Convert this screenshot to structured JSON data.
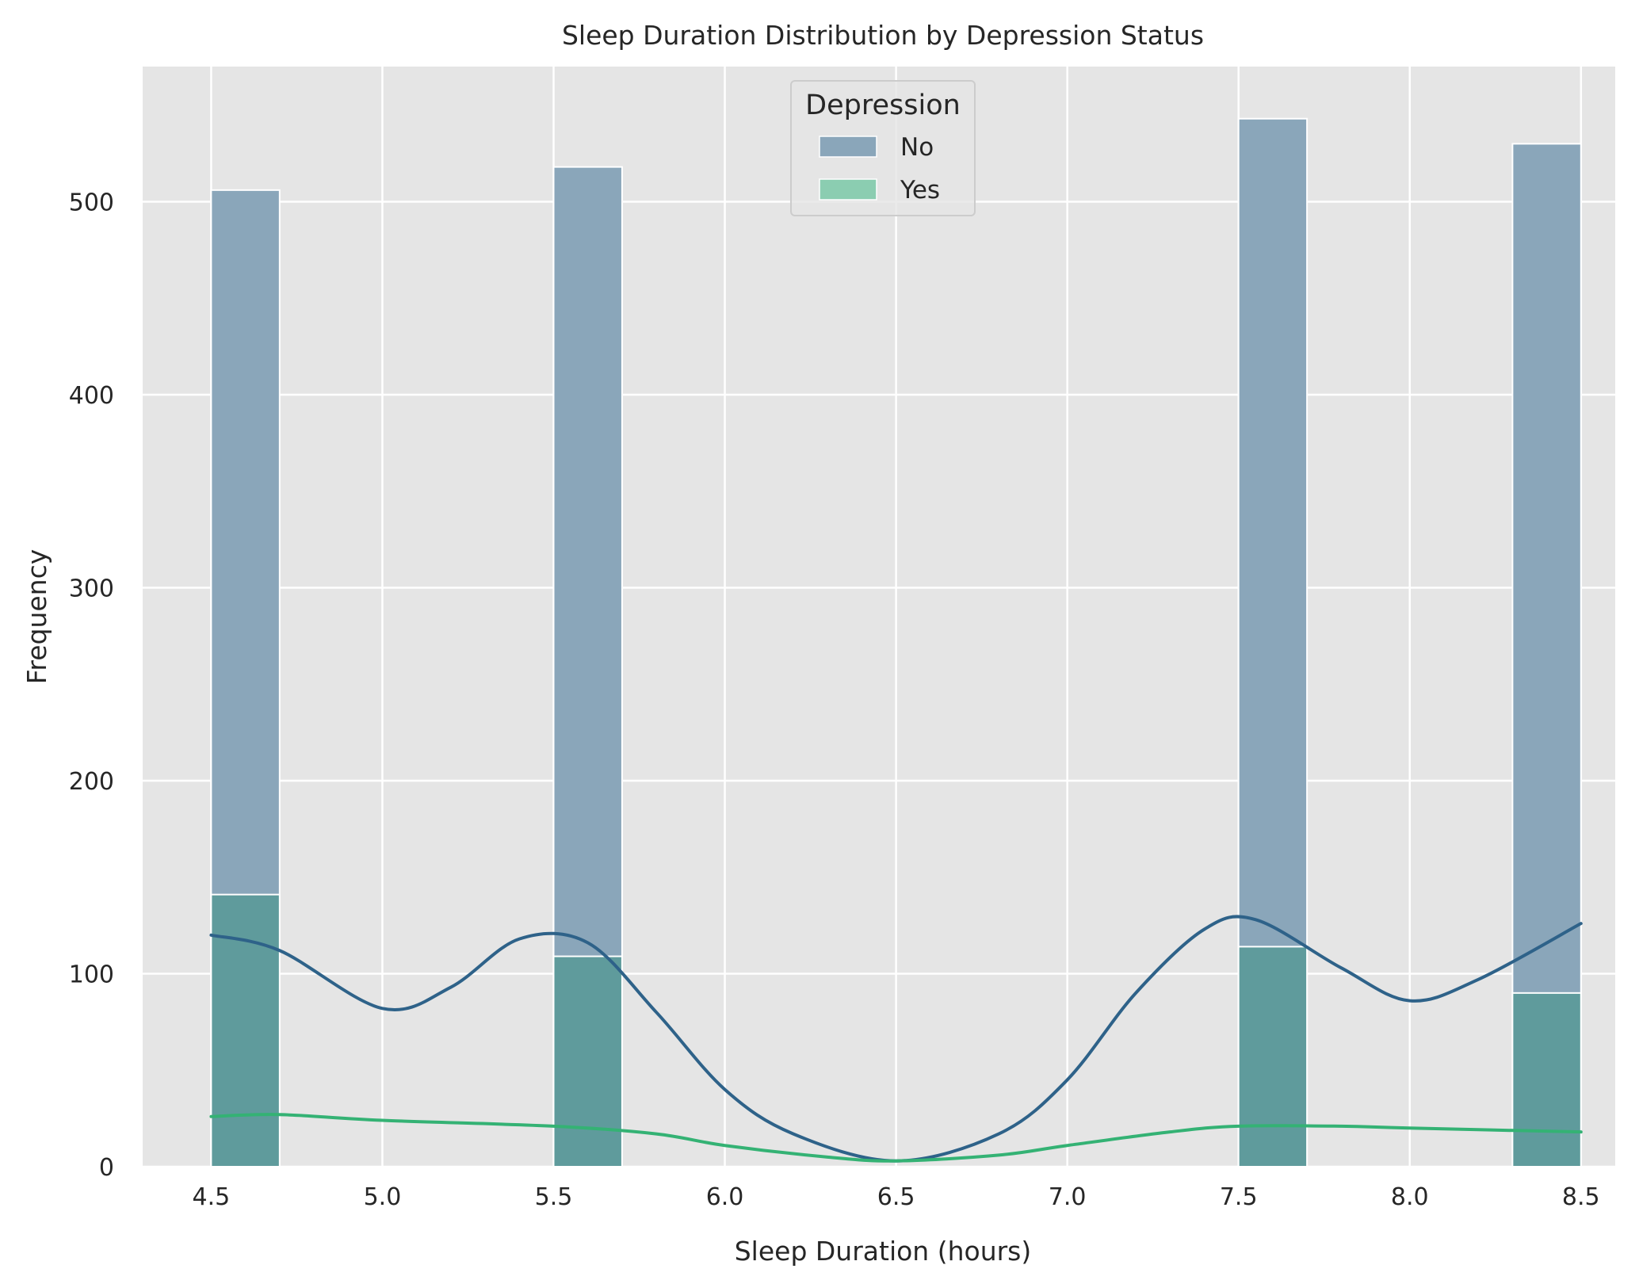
{
  "chart_data": {
    "type": "bar",
    "title": "Sleep Duration Distribution by Depression Status",
    "xlabel": "Sleep Duration (hours)",
    "ylabel": "Frequency",
    "xlim": [
      4.3,
      8.6
    ],
    "ylim": [
      0,
      570
    ],
    "xticks": [
      "4.5",
      "5.0",
      "5.5",
      "6.0",
      "6.5",
      "7.0",
      "7.5",
      "8.0",
      "8.5"
    ],
    "yticks": [
      "0",
      "100",
      "200",
      "300",
      "400",
      "500"
    ],
    "grid": true,
    "bin_width": 0.2,
    "legend": {
      "title": "Depression",
      "placement": "top-center",
      "entries": [
        "No",
        "Yes"
      ]
    },
    "series": [
      {
        "name": "No",
        "color": "#8aa6ba",
        "kde_color": "#2e6289",
        "bins": [
          {
            "x0": 4.5,
            "x1": 4.7,
            "count": 506
          },
          {
            "x0": 5.5,
            "x1": 5.7,
            "count": 518
          },
          {
            "x0": 7.5,
            "x1": 7.7,
            "count": 543
          },
          {
            "x0": 8.3,
            "x1": 8.5,
            "count": 530
          }
        ],
        "kde": {
          "x": [
            4.5,
            4.7,
            5.0,
            5.2,
            5.4,
            5.6,
            5.8,
            6.0,
            6.2,
            6.5,
            6.8,
            7.0,
            7.2,
            7.4,
            7.55,
            7.8,
            8.0,
            8.2,
            8.5
          ],
          "y": [
            120,
            112,
            82,
            93,
            118,
            116,
            80,
            40,
            17,
            3,
            17,
            45,
            90,
            123,
            128,
            103,
            86,
            97,
            126
          ]
        }
      },
      {
        "name": "Yes",
        "color": "#5f9b9c",
        "kde_color": "#34b274",
        "bins": [
          {
            "x0": 4.5,
            "x1": 4.7,
            "count": 141
          },
          {
            "x0": 5.5,
            "x1": 5.7,
            "count": 109
          },
          {
            "x0": 7.5,
            "x1": 7.7,
            "count": 114
          },
          {
            "x0": 8.3,
            "x1": 8.5,
            "count": 90
          }
        ],
        "kde": {
          "x": [
            4.5,
            4.7,
            5.0,
            5.5,
            5.8,
            6.0,
            6.3,
            6.5,
            6.8,
            7.0,
            7.3,
            7.5,
            7.8,
            8.0,
            8.5
          ],
          "y": [
            26,
            27,
            24,
            21,
            17,
            11,
            5,
            3,
            6,
            11,
            18,
            21,
            21,
            20,
            18
          ]
        }
      }
    ]
  }
}
